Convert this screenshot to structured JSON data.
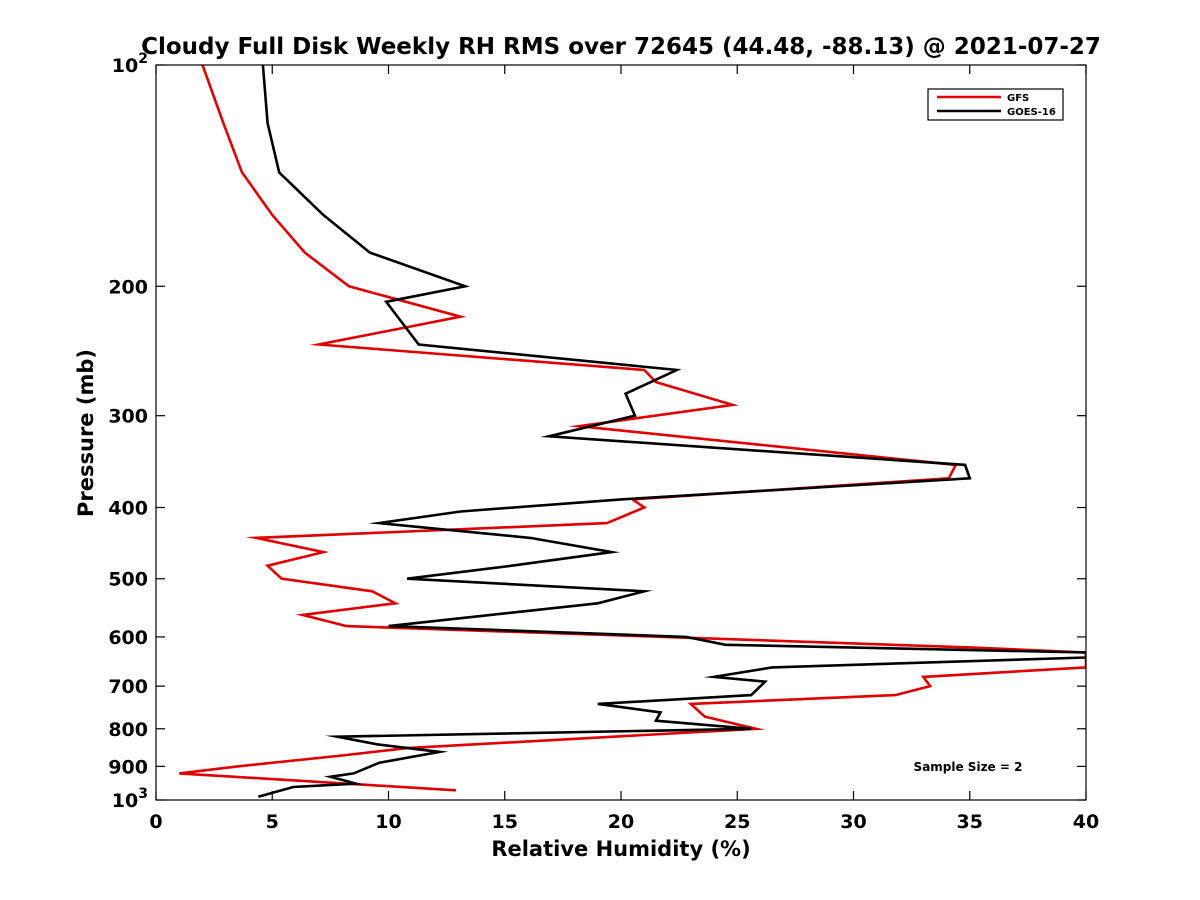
{
  "chart_data": {
    "type": "line",
    "title": "Cloudy Full Disk Weekly RH RMS over 72645 (44.48, -88.13) @ 2021-07-27",
    "xlabel": "Relative Humidity (%)",
    "ylabel": "Pressure (mb)",
    "xlim": [
      0,
      40
    ],
    "ylim": [
      100,
      1000
    ],
    "y_scale": "log",
    "y_reversed": true,
    "grid": false,
    "legend_position": "top-right",
    "x_ticks": [
      "0",
      "5",
      "10",
      "15",
      "20",
      "25",
      "30",
      "35",
      "40"
    ],
    "x_tick_values": [
      0,
      5,
      10,
      15,
      20,
      25,
      30,
      35,
      40
    ],
    "y_ticks": [
      {
        "value": 100,
        "base": "10",
        "exp": "2"
      },
      {
        "value": 200,
        "label": "200"
      },
      {
        "value": 300,
        "label": "300"
      },
      {
        "value": 400,
        "label": "400"
      },
      {
        "value": 500,
        "label": "500"
      },
      {
        "value": 600,
        "label": "600"
      },
      {
        "value": 700,
        "label": "700"
      },
      {
        "value": 800,
        "label": "800"
      },
      {
        "value": 900,
        "label": "900"
      },
      {
        "value": 1000,
        "base": "10",
        "exp": "3"
      }
    ],
    "annotation": "Sample Size = 2",
    "series": [
      {
        "name": "GFS",
        "color": "#e00000",
        "x": [
          2.0,
          2.9,
          3.7,
          5.0,
          6.4,
          8.3,
          13.1,
          7.0,
          21.0,
          21.5,
          24.8,
          18.2,
          34.4,
          34.1,
          20.5,
          21.0,
          19.4,
          4.3,
          7.2,
          4.8,
          5.4,
          9.3,
          10.3,
          6.3,
          8.2,
          35.0,
          40.0,
          40.0,
          33.0,
          33.3,
          31.8,
          23.0,
          23.6,
          25.8,
          10.8,
          8.0,
          3.5,
          1.0,
          12.9
        ],
        "y": [
          100,
          120,
          140,
          160,
          180,
          200,
          220,
          240,
          260,
          270,
          290,
          310,
          350,
          365,
          390,
          400,
          420,
          440,
          460,
          480,
          500,
          520,
          540,
          560,
          580,
          620,
          630,
          660,
          680,
          700,
          720,
          740,
          770,
          800,
          850,
          870,
          900,
          920,
          970
        ]
      },
      {
        "name": "GOES-16",
        "color": "#000000",
        "x": [
          4.6,
          4.8,
          5.3,
          7.2,
          9.2,
          13.3,
          9.9,
          11.3,
          22.4,
          20.2,
          20.6,
          16.9,
          34.8,
          35.0,
          20.0,
          13.1,
          9.6,
          16.1,
          19.6,
          15.3,
          10.8,
          21.0,
          19.0,
          10.0,
          22.8,
          24.5,
          40.0,
          40.0,
          26.5,
          24.0,
          26.2,
          25.6,
          19.0,
          21.7,
          21.5,
          25.6,
          7.8,
          9.5,
          12.2,
          9.6,
          8.5,
          7.5,
          8.6,
          5.9,
          4.4
        ],
        "y": [
          100,
          120,
          140,
          160,
          180,
          200,
          210,
          240,
          260,
          280,
          300,
          320,
          350,
          365,
          390,
          405,
          420,
          440,
          460,
          480,
          500,
          520,
          540,
          580,
          600,
          615,
          630,
          640,
          660,
          680,
          690,
          720,
          740,
          760,
          780,
          800,
          820,
          840,
          860,
          890,
          920,
          930,
          950,
          960,
          990
        ]
      }
    ]
  }
}
